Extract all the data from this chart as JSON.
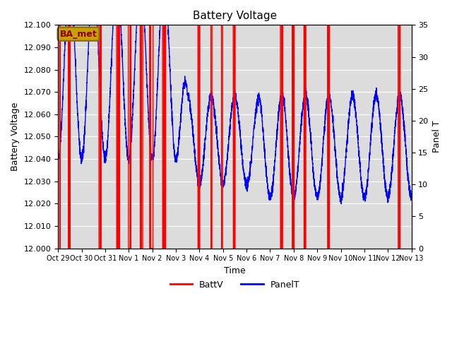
{
  "title": "Battery Voltage",
  "xlabel": "Time",
  "ylabel_left": "Battery Voltage",
  "ylabel_right": "Panel T",
  "ylim_left": [
    12.0,
    12.1
  ],
  "ylim_right": [
    0,
    35
  ],
  "bg_color": "#dcdcdc",
  "annotation_label": "BA_met",
  "annotation_facecolor": "#c8a000",
  "annotation_edgecolor": "#8b6914",
  "annotation_text_color": "#8b0000",
  "x_tick_labels": [
    "Oct 29",
    "Oct 30",
    "Oct 31",
    "Nov 1",
    "Nov 2",
    "Nov 3",
    "Nov 4",
    "Nov 5",
    "Nov 6",
    "Nov 7",
    "Nov 8",
    "Nov 9",
    "Nov 10",
    "Nov 11",
    "Nov 12",
    "Nov 13"
  ],
  "x_tick_positions": [
    0,
    1,
    2,
    3,
    4,
    5,
    6,
    7,
    8,
    9,
    10,
    11,
    12,
    13,
    14,
    15
  ],
  "batt_color": "#ff0000",
  "panel_color": "#0000ff",
  "legend_labels": [
    "BattV",
    "PanelT"
  ],
  "yticks_left": [
    12.0,
    12.01,
    12.02,
    12.03,
    12.04,
    12.05,
    12.06,
    12.07,
    12.08,
    12.09,
    12.1
  ],
  "yticks_right": [
    0,
    5,
    10,
    15,
    20,
    25,
    30,
    35
  ],
  "batt_drop_positions": [
    0.08,
    0.45,
    0.5,
    1.75,
    1.78,
    1.82,
    2.5,
    2.52,
    2.55,
    2.6,
    3.0,
    3.02,
    3.05,
    3.08,
    3.5,
    3.52,
    3.55,
    3.58,
    3.9,
    3.92,
    3.95,
    3.98,
    4.0,
    4.02,
    4.45,
    4.47,
    4.5,
    4.52,
    4.55,
    5.95,
    5.97,
    6.0,
    6.5,
    6.52,
    6.95,
    6.97,
    7.45,
    7.47,
    7.5,
    9.45,
    9.47,
    9.5,
    9.52,
    9.95,
    9.97,
    10.0,
    10.45,
    10.47,
    10.5,
    11.45,
    11.47,
    11.5,
    14.45,
    14.47,
    14.5
  ]
}
